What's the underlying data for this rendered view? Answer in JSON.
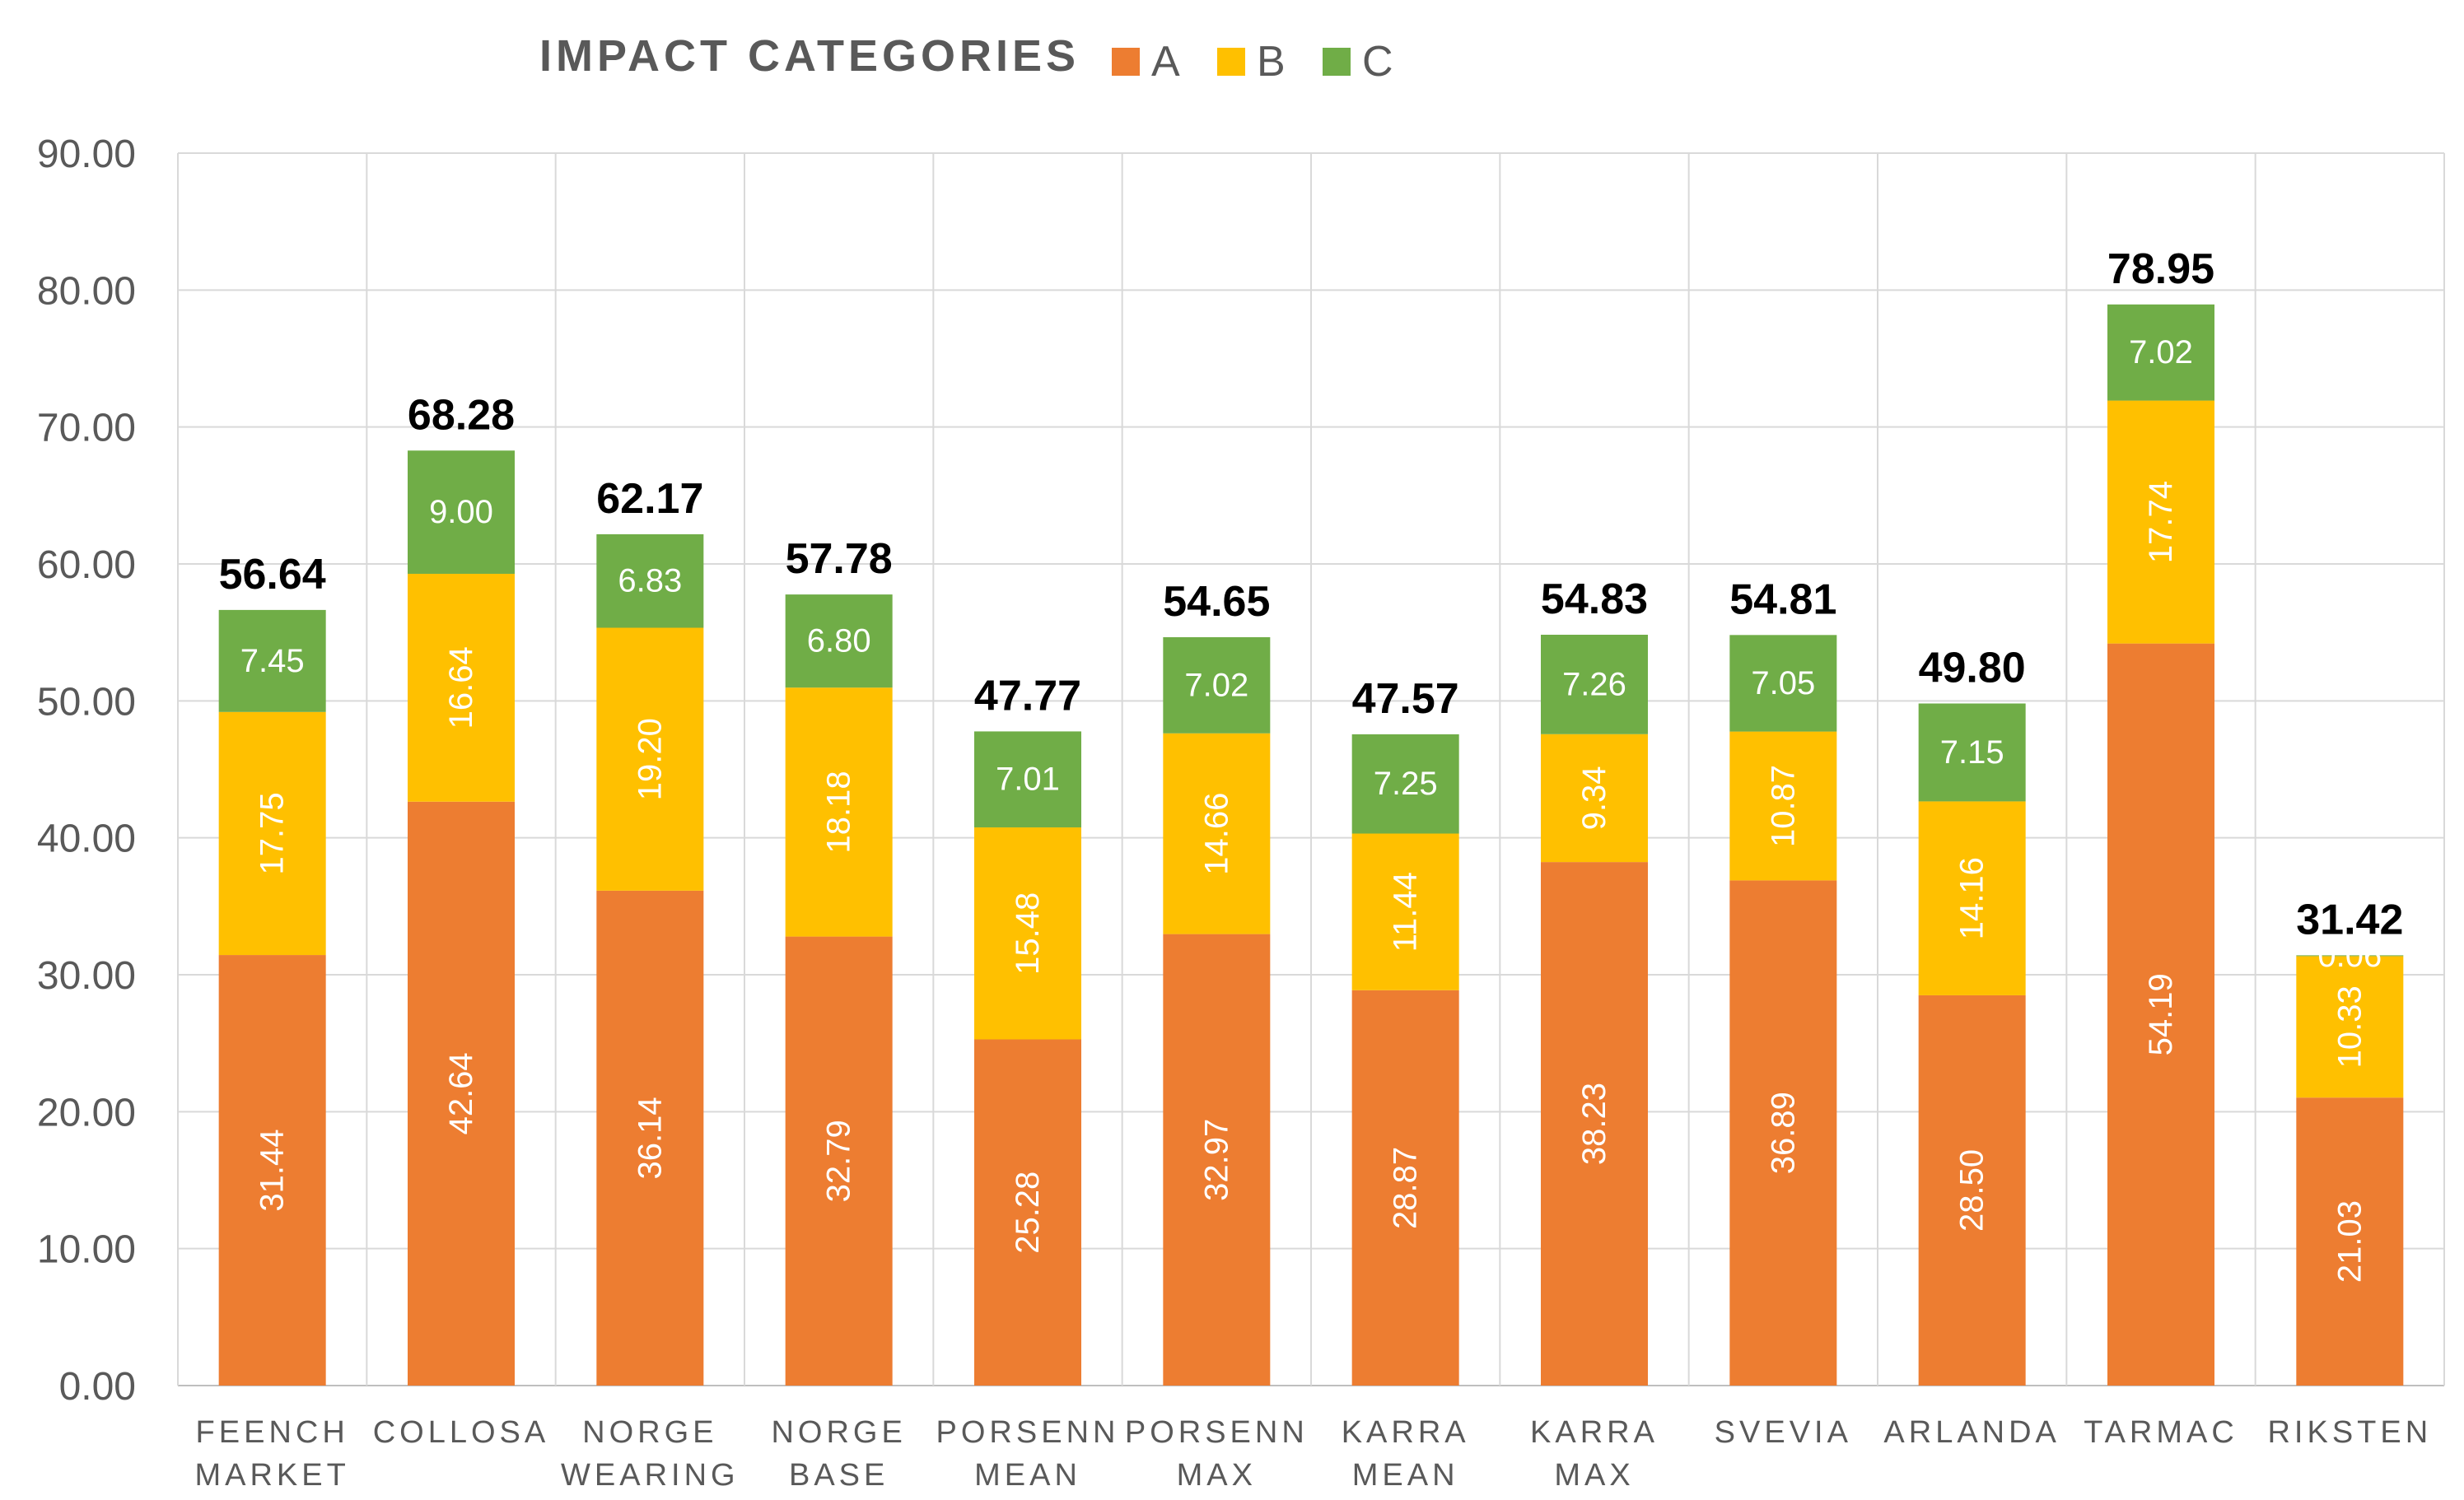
{
  "chart_data": {
    "type": "bar",
    "stacked": true,
    "title": "IMPACT CATEGORIES",
    "categories": [
      [
        "FEENCH",
        "MARKET"
      ],
      [
        "COLLOSA"
      ],
      [
        "NORGE",
        "WEARING"
      ],
      [
        "NORGE",
        "BASE"
      ],
      [
        "PORSENN",
        "MEAN"
      ],
      [
        "PORSENN",
        "MAX"
      ],
      [
        "KARRA",
        "MEAN"
      ],
      [
        "KARRA",
        "MAX"
      ],
      [
        "SVEVIA"
      ],
      [
        "ARLANDA"
      ],
      [
        "TARMAC"
      ],
      [
        "RIKSTEN"
      ]
    ],
    "series": [
      {
        "name": "A",
        "color": "#ED7D31",
        "values": [
          31.44,
          42.64,
          36.14,
          32.79,
          25.28,
          32.97,
          28.87,
          38.23,
          36.89,
          28.5,
          54.19,
          21.03
        ],
        "labels": [
          "31.44",
          "42.64",
          "36.14",
          "32.79",
          "25.28",
          "32.97",
          "28.87",
          "38.23",
          "36.89",
          "28.50",
          "54.19",
          "21.03"
        ],
        "label_rotation": "vertical",
        "label_color": "#ffffff"
      },
      {
        "name": "B",
        "color": "#FFC000",
        "values": [
          17.75,
          16.64,
          19.2,
          18.18,
          15.48,
          14.66,
          11.44,
          9.34,
          10.87,
          14.16,
          17.74,
          10.33
        ],
        "labels": [
          "17.75",
          "16.64",
          "19.20",
          "18.18",
          "15.48",
          "14.66",
          "11.44",
          "9.34",
          "10.87",
          "14.16",
          "17.74",
          "10.33"
        ],
        "label_rotation": "vertical",
        "label_color": "#ffffff"
      },
      {
        "name": "C",
        "color": "#70AD47",
        "values": [
          7.45,
          9.0,
          6.83,
          6.8,
          7.01,
          7.02,
          7.25,
          7.26,
          7.05,
          7.15,
          7.02,
          0.06
        ],
        "labels": [
          "7.45",
          "9.00",
          "6.83",
          "6.80",
          "7.01",
          "7.02",
          "7.25",
          "7.26",
          "7.05",
          "7.15",
          "7.02",
          "0.06"
        ],
        "label_rotation": "horizontal",
        "label_color": "#ffffff"
      }
    ],
    "totals": [
      "56.64",
      "68.28",
      "62.17",
      "57.78",
      "47.77",
      "54.65",
      "47.57",
      "54.83",
      "54.81",
      "49.80",
      "78.95",
      "31.42"
    ],
    "ylim": [
      0,
      90
    ],
    "yticks": [
      "0.00",
      "10.00",
      "20.00",
      "30.00",
      "40.00",
      "50.00",
      "60.00",
      "70.00",
      "80.00",
      "90.00"
    ],
    "ytick_values": [
      0,
      10,
      20,
      30,
      40,
      50,
      60,
      70,
      80,
      90
    ],
    "xlabel": "",
    "ylabel": "",
    "grid": true,
    "legend_position": "top"
  }
}
